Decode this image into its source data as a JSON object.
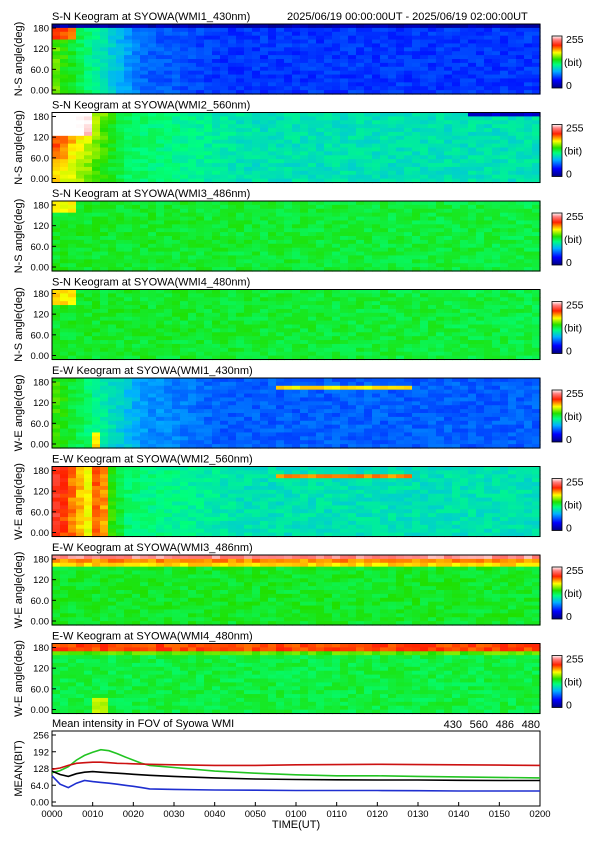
{
  "header": {
    "time_range": "2025/06/19 00:00:00UT - 2025/06/19 02:00:00UT"
  },
  "chart_data": [
    {
      "type": "heatmap",
      "title": "S-N Keogram at SYOWA(WMI1_430nm)",
      "ylabel": "N-S angle(deg)",
      "ytick_labels": [
        "180",
        "120",
        "60.0",
        "0.00"
      ],
      "ylim": [
        0,
        180
      ],
      "colorbar": {
        "max_label": "255",
        "unit_label": "(bit)",
        "min_label": "0"
      },
      "profile": "blue430ns"
    },
    {
      "type": "heatmap",
      "title": "S-N Keogram at SYOWA(WMI2_560nm)",
      "ylabel": "N-S angle(deg)",
      "ytick_labels": [
        "180",
        "120",
        "60.0",
        "0.00"
      ],
      "ylim": [
        0,
        180
      ],
      "colorbar": {
        "max_label": "255",
        "unit_label": "(bit)",
        "min_label": "0"
      },
      "profile": "green560ns"
    },
    {
      "type": "heatmap",
      "title": "S-N Keogram at SYOWA(WMI3_486nm)",
      "ylabel": "N-S angle(deg)",
      "ytick_labels": [
        "180",
        "120",
        "60.0",
        "0.00"
      ],
      "ylim": [
        0,
        180
      ],
      "colorbar": {
        "max_label": "255",
        "unit_label": "(bit)",
        "min_label": "0"
      },
      "profile": "flat486ns"
    },
    {
      "type": "heatmap",
      "title": "S-N Keogram at SYOWA(WMI4_480nm)",
      "ylabel": "N-S angle(deg)",
      "ytick_labels": [
        "180",
        "120",
        "60.0",
        "0.00"
      ],
      "ylim": [
        0,
        180
      ],
      "colorbar": {
        "max_label": "255",
        "unit_label": "(bit)",
        "min_label": "0"
      },
      "profile": "flat480ns"
    },
    {
      "type": "heatmap",
      "title": "E-W Keogram at SYOWA(WMI1_430nm)",
      "ylabel": "W-E angle(deg)",
      "ytick_labels": [
        "180",
        "120",
        "60.0",
        "0.00"
      ],
      "ylim": [
        0,
        180
      ],
      "colorbar": {
        "max_label": "255",
        "unit_label": "(bit)",
        "min_label": "0"
      },
      "profile": "blue430ew"
    },
    {
      "type": "heatmap",
      "title": "E-W Keogram at SYOWA(WMI2_560nm)",
      "ylabel": "W-E angle(deg)",
      "ytick_labels": [
        "180",
        "120",
        "60.0",
        "0.00"
      ],
      "ylim": [
        0,
        180
      ],
      "colorbar": {
        "max_label": "255",
        "unit_label": "(bit)",
        "min_label": "0"
      },
      "profile": "green560ew"
    },
    {
      "type": "heatmap",
      "title": "E-W Keogram at SYOWA(WMI3_486nm)",
      "ylabel": "W-E angle(deg)",
      "ytick_labels": [
        "180",
        "120",
        "60.0",
        "0.00"
      ],
      "ylim": [
        0,
        180
      ],
      "colorbar": {
        "max_label": "255",
        "unit_label": "(bit)",
        "min_label": "0"
      },
      "profile": "red486ew"
    },
    {
      "type": "heatmap",
      "title": "E-W Keogram at SYOWA(WMI4_480nm)",
      "ylabel": "W-E angle(deg)",
      "ytick_labels": [
        "180",
        "120",
        "60.0",
        "0.00"
      ],
      "ylim": [
        0,
        180
      ],
      "colorbar": {
        "max_label": "255",
        "unit_label": "(bit)",
        "min_label": "0"
      },
      "profile": "red480ew"
    },
    {
      "type": "line",
      "title": "Mean intensity in FOV of Syowa WMI",
      "ylabel": "MEAN(BIT)",
      "xlabel": "TIME(UT)",
      "ylim": [
        0,
        256
      ],
      "ytick_labels": [
        "256",
        "192",
        "128",
        "64.0",
        "0.00"
      ],
      "x_tick_labels": [
        "0000",
        "0010",
        "0020",
        "0030",
        "0040",
        "0050",
        "0100",
        "0110",
        "0120",
        "0130",
        "0140",
        "0150",
        "0200"
      ],
      "legend": [
        {
          "label": "430",
          "color": "#1f2fd0"
        },
        {
          "label": "560",
          "color": "#22c422"
        },
        {
          "label": "486",
          "color": "#cc1111"
        },
        {
          "label": "480",
          "color": "#000000"
        }
      ],
      "x_minutes": [
        0,
        2,
        4,
        6,
        8,
        10,
        12,
        14,
        16,
        18,
        20,
        22,
        24,
        30,
        40,
        50,
        60,
        70,
        80,
        90,
        100,
        110,
        120
      ],
      "series": [
        {
          "name": "430",
          "color": "#1f2fd0",
          "values": [
            100,
            68,
            55,
            72,
            82,
            78,
            75,
            72,
            68,
            64,
            60,
            55,
            50,
            48,
            46,
            45,
            44,
            44,
            44,
            43,
            42,
            42,
            42
          ]
        },
        {
          "name": "560",
          "color": "#22c422",
          "values": [
            112,
            120,
            135,
            160,
            178,
            190,
            200,
            196,
            185,
            172,
            160,
            148,
            140,
            132,
            118,
            110,
            104,
            100,
            100,
            98,
            96,
            94,
            92
          ]
        },
        {
          "name": "486",
          "color": "#cc1111",
          "values": [
            125,
            130,
            140,
            148,
            150,
            152,
            152,
            150,
            148,
            147,
            146,
            145,
            144,
            142,
            140,
            140,
            142,
            143,
            144,
            143,
            142,
            141,
            140
          ]
        },
        {
          "name": "480",
          "color": "#000000",
          "values": [
            118,
            105,
            98,
            108,
            114,
            116,
            114,
            112,
            110,
            108,
            106,
            104,
            102,
            98,
            92,
            88,
            86,
            85,
            84,
            84,
            83,
            82,
            82
          ]
        }
      ]
    }
  ]
}
